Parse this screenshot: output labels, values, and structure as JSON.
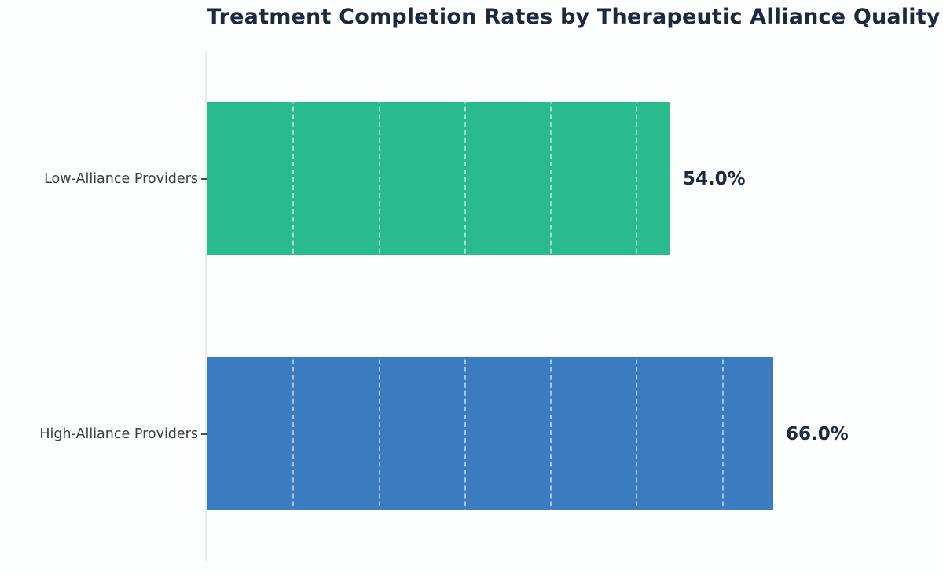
{
  "chart_data": {
    "type": "bar",
    "orientation": "horizontal",
    "title": "Treatment Completion Rates by Therapeutic Alliance Quality",
    "categories": [
      "Low-Alliance Providers",
      "High-Alliance Providers"
    ],
    "values": [
      54.0,
      66.0
    ],
    "value_labels": [
      "54.0%",
      "66.0%"
    ],
    "bar_colors": [
      "#2abb8c",
      "#3b7cc0"
    ],
    "xlabel": "",
    "ylabel": "",
    "xlim": [
      0,
      80
    ],
    "gridline_step": 10,
    "grid": "vertical dashed lines, white, visible only over bars",
    "legend_position": "none",
    "x_tick_labels_visible": false
  },
  "colors": {
    "background": "#fdfffe",
    "title_text": "#1c2940",
    "category_label_text": "#3d3d3d",
    "value_label_text": "#1c2940",
    "axis_spine": "#e8eceb",
    "tick_mark": "#4a4a4a",
    "gridline": "rgba(255,255,255,0.55)"
  }
}
